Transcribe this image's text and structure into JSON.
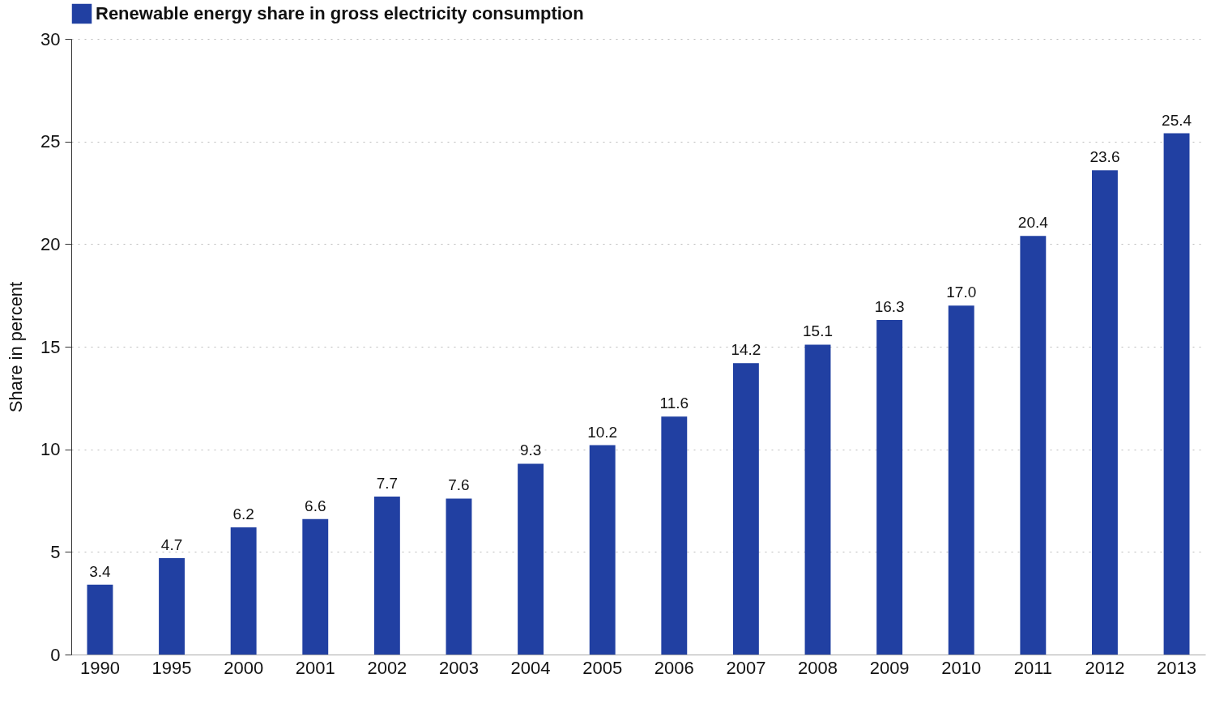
{
  "chart_data": {
    "type": "bar",
    "ylabel": "Share in percent",
    "categories": [
      "1990",
      "1995",
      "2000",
      "2001",
      "2002",
      "2003",
      "2004",
      "2005",
      "2006",
      "2007",
      "2008",
      "2009",
      "2010",
      "2011",
      "2012",
      "2013"
    ],
    "series": [
      {
        "name": "Renewable energy share in gross electricity consumption",
        "color": "#2140a2",
        "values": [
          3.4,
          4.7,
          6.2,
          6.6,
          7.7,
          7.6,
          9.3,
          10.2,
          11.6,
          14.2,
          15.1,
          16.3,
          17.0,
          20.4,
          23.6,
          25.4
        ],
        "value_labels": [
          "3.4",
          "4.7",
          "6.2",
          "6.6",
          "7.7",
          "7.6",
          "9.3",
          "10.2",
          "11.6",
          "14.2",
          "15.1",
          "16.3",
          "17.0",
          "20.4",
          "23.6",
          "25.4"
        ]
      }
    ],
    "ylim": [
      0,
      30
    ],
    "yticks": [
      0,
      5,
      10,
      15,
      20,
      25,
      30
    ],
    "grid": "y",
    "legend": "top"
  }
}
